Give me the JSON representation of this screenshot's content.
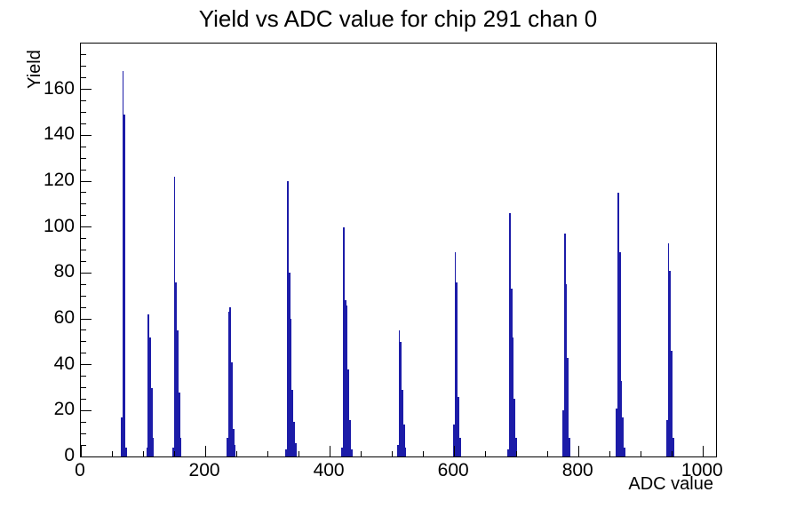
{
  "title": "Yield vs ADC value for chip 291 chan 0",
  "chart_data": {
    "type": "bar",
    "title": "Yield vs ADC value for chip 291 chan 0",
    "xlabel": "ADC value",
    "ylabel": "Yield",
    "xlim": [
      0,
      1021
    ],
    "ylim": [
      0,
      180
    ],
    "grid": false,
    "legend": "none",
    "line_color": "#1c1ca8",
    "frame_color": "#000000",
    "x_ticks": {
      "values": [
        0,
        200,
        400,
        600,
        800,
        1000
      ],
      "labels": [
        "0",
        "200",
        "400",
        "600",
        "800",
        "1000"
      ],
      "minor_step": 50,
      "minor_max": 1000
    },
    "y_ticks": {
      "values": [
        0,
        20,
        40,
        60,
        80,
        100,
        120,
        140,
        160
      ],
      "labels": [
        "0",
        "20",
        "40",
        "60",
        "80",
        "100",
        "120",
        "140",
        "160"
      ],
      "minor_step": 5,
      "minor_max": 175
    },
    "bin_width_adc": 2.5,
    "clusters": [
      {
        "start_adc": 64,
        "heights": [
          17,
          168,
          149,
          4
        ]
      },
      {
        "start_adc": 105,
        "heights": [
          4,
          62,
          52,
          30,
          8
        ]
      },
      {
        "start_adc": 147,
        "heights": [
          4,
          122,
          76,
          55,
          28,
          8
        ]
      },
      {
        "start_adc": 234,
        "heights": [
          8,
          63,
          65,
          41,
          12,
          5
        ]
      },
      {
        "start_adc": 329,
        "heights": [
          3,
          120,
          80,
          60,
          29,
          15,
          6
        ]
      },
      {
        "start_adc": 419,
        "heights": [
          4,
          100,
          68,
          66,
          38,
          16,
          3
        ]
      },
      {
        "start_adc": 508,
        "heights": [
          5,
          55,
          50,
          29,
          14,
          4
        ]
      },
      {
        "start_adc": 598,
        "heights": [
          14,
          89,
          76,
          26,
          8
        ]
      },
      {
        "start_adc": 686,
        "heights": [
          3,
          106,
          73,
          52,
          25,
          8
        ]
      },
      {
        "start_adc": 774,
        "heights": [
          20,
          97,
          75,
          43,
          8
        ]
      },
      {
        "start_adc": 860,
        "heights": [
          21,
          115,
          89,
          33,
          17,
          4
        ]
      },
      {
        "start_adc": 941,
        "heights": [
          16,
          93,
          81,
          46,
          8
        ]
      }
    ]
  }
}
